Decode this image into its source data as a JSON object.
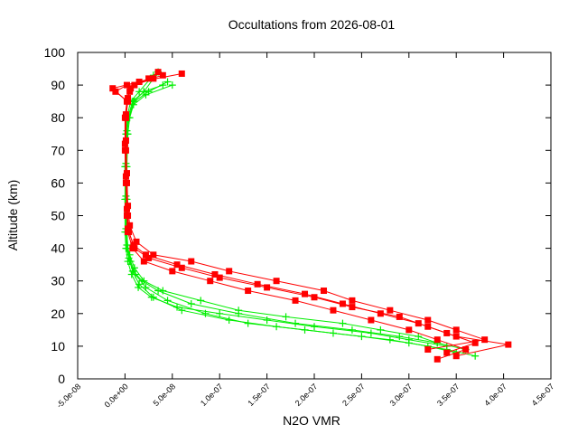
{
  "chart_data": {
    "type": "line",
    "title": "Occultations from 2026-08-01",
    "xlabel": "N2O VMR",
    "ylabel": "Altitude (km)",
    "xlim": [
      -5e-08,
      4.5e-07
    ],
    "ylim": [
      0,
      100
    ],
    "x_ticks": [
      -5e-08,
      0,
      5e-08,
      1e-07,
      1.5e-07,
      2e-07,
      2.5e-07,
      3e-07,
      3.5e-07,
      4e-07,
      4.5e-07
    ],
    "x_tick_labels": [
      "-5.0e-08",
      "0.0e+00",
      "5.0e-08",
      "1.0e-07",
      "1.5e-07",
      "2.0e-07",
      "2.5e-07",
      "3.0e-07",
      "3.5e-07",
      "4.0e-07",
      "4.5e-07"
    ],
    "y_ticks": [
      0,
      10,
      20,
      30,
      40,
      50,
      60,
      70,
      80,
      90,
      100
    ],
    "y_tick_labels": [
      "0",
      "10",
      "20",
      "30",
      "40",
      "50",
      "60",
      "70",
      "80",
      "90",
      "100"
    ],
    "grid": false,
    "series": [
      {
        "color": "#00ee00",
        "marker": "plus",
        "profiles": [
          {
            "x": [
              3.5e-07,
              3.2e-07,
              2.8e-07,
              2.2e-07,
              1.6e-07,
              1.1e-07,
              6e-08,
              3e-08,
              1.5e-08,
              8e-09,
              4e-09,
              2e-09,
              1e-09,
              1e-09,
              1e-09,
              2e-09,
              3e-09,
              8e-09,
              2e-08,
              4e-08
            ],
            "y": [
              8,
              10,
              12,
              14,
              16,
              18,
              21,
              25,
              29,
              33,
              37,
              40,
              45,
              55,
              65,
              75,
              80,
              85,
              88,
              90
            ]
          },
          {
            "x": [
              3.6e-07,
              3.3e-07,
              2.9e-07,
              2.4e-07,
              1.8e-07,
              1.2e-07,
              7e-08,
              3.5e-08,
              1.8e-08,
              9e-09,
              5e-09,
              3e-09,
              2e-09,
              2e-09,
              2e-09,
              3e-09,
              5e-09,
              1e-08,
              2.5e-08,
              4.5e-08
            ],
            "y": [
              9,
              11,
              13,
              15,
              17,
              20,
              23,
              27,
              30,
              33,
              36,
              40,
              45,
              55,
              65,
              75,
              80,
              85,
              88,
              91
            ]
          },
          {
            "x": [
              3.4e-07,
              3e-07,
              2.6e-07,
              2e-07,
              1.5e-07,
              1e-07,
              5.5e-08,
              2.8e-08,
              1.4e-08,
              7e-09,
              3e-09,
              1e-09,
              0,
              0,
              0,
              1e-09,
              2e-09,
              6e-09,
              1.5e-08,
              3e-08
            ],
            "y": [
              10,
              12,
              14,
              16,
              18,
              20,
              22,
              25,
              28,
              32,
              36,
              40,
              45,
              55,
              65,
              75,
              80,
              85,
              88,
              93
            ]
          },
          {
            "x": [
              3.3e-07,
              3.1e-07,
              2.7e-07,
              2.3e-07,
              1.7e-07,
              1.2e-07,
              8e-08,
              4e-08,
              2e-08,
              1e-08,
              5e-09,
              2e-09,
              1e-09,
              1e-09,
              1e-09,
              2e-09,
              4e-09,
              9e-09,
              2.2e-08,
              5e-08
            ],
            "y": [
              11,
              13,
              15,
              17,
              19,
              21,
              24,
              27,
              30,
              34,
              38,
              41,
              46,
              56,
              66,
              76,
              80,
              84,
              87,
              90
            ]
          },
          {
            "x": [
              3.7e-07,
              3.4e-07,
              3e-07,
              2.5e-07,
              1.9e-07,
              1.3e-07,
              8.5e-08,
              4.5e-08,
              2.2e-08,
              1.1e-08,
              6e-09,
              3e-09,
              2e-09,
              1e-09,
              1e-09,
              2e-09,
              4e-09,
              9e-09,
              2e-08,
              3.5e-08
            ],
            "y": [
              7,
              9,
              11,
              13,
              15,
              17,
              20,
              24,
              28,
              32,
              36,
              40,
              45,
              55,
              65,
              75,
              80,
              85,
              88,
              94
            ]
          }
        ]
      },
      {
        "color": "#ff0000",
        "marker": "square",
        "profiles": [
          {
            "x": [
              3.3e-07,
              3.6e-07,
              3.3e-07,
              3e-07,
              2.6e-07,
              2.2e-07,
              1.8e-07,
              1.3e-07,
              9e-08,
              5e-08,
              2e-08,
              8e-09,
              3e-09,
              2e-09,
              1e-09,
              0,
              0,
              2e-09,
              5e-09,
              1e-08,
              3e-08
            ],
            "y": [
              6,
              9,
              12,
              15,
              18,
              21,
              24,
              27,
              30,
              33,
              36,
              40,
              45,
              50,
              60,
              70,
              80,
              85,
              88,
              90,
              92
            ]
          },
          {
            "x": [
              3.5e-07,
              4.05e-07,
              3.5e-07,
              3.2e-07,
              2.9e-07,
              2.4e-07,
              2e-07,
              1.5e-07,
              1e-07,
              6e-08,
              2.5e-08,
              1e-08,
              4e-09,
              3e-09,
              2e-09,
              1e-09,
              1e-09,
              3e-09,
              -1e-08,
              2e-09,
              4e-08
            ],
            "y": [
              7,
              10.5,
              13,
              16,
              19,
              22,
              25,
              28,
              31,
              34,
              37,
              40,
              45,
              50,
              60,
              70,
              80,
              85,
              88,
              90,
              93
            ]
          },
          {
            "x": [
              3.4e-07,
              3.7e-07,
              3.4e-07,
              3.1e-07,
              2.7e-07,
              2.3e-07,
              1.9e-07,
              1.4e-07,
              9.5e-08,
              5.5e-08,
              2.2e-08,
              9e-09,
              3e-09,
              2e-09,
              1e-09,
              0,
              1e-09,
              2e-09,
              -1.3e-08,
              1.5e-08,
              6e-08
            ],
            "y": [
              8,
              11,
              14,
              17,
              20,
              23,
              26,
              29,
              32,
              35,
              38,
              41,
              46,
              52,
              62,
              72,
              80,
              85,
              89,
              91,
              93.5
            ]
          },
          {
            "x": [
              3.2e-07,
              3.8e-07,
              3.5e-07,
              3.2e-07,
              2.8e-07,
              2.4e-07,
              2.1e-07,
              1.6e-07,
              1.1e-07,
              7e-08,
              3e-08,
              1.2e-08,
              5e-09,
              3e-09,
              2e-09,
              1e-09,
              1e-09,
              3e-09,
              6e-09,
              2.5e-08,
              3.5e-08
            ],
            "y": [
              9,
              12,
              15,
              18,
              21,
              24,
              27,
              30,
              33,
              36,
              38,
              42,
              47,
              53,
              63,
              73,
              81,
              86,
              89,
              92,
              94
            ]
          }
        ]
      }
    ]
  }
}
